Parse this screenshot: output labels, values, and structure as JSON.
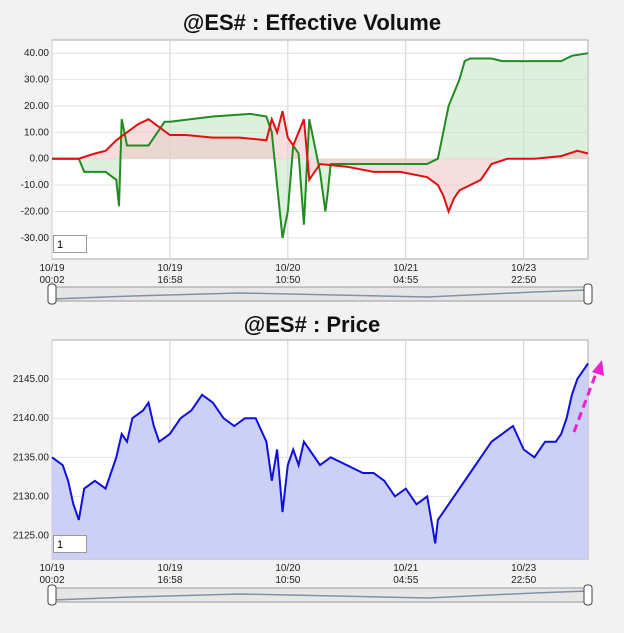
{
  "chart_data": [
    {
      "type": "line",
      "title": "@ES# : Effective Volume",
      "y_ticks": [
        "40.00",
        "30.00",
        "20.00",
        "10.00",
        "0.00",
        "-10.00",
        "-20.00",
        "-30.00"
      ],
      "ylim": [
        -38,
        45
      ],
      "x_ticks": [
        {
          "date": "10/19",
          "time": "00:02"
        },
        {
          "date": "10/19",
          "time": "16:58"
        },
        {
          "date": "10/20",
          "time": "10:50"
        },
        {
          "date": "10/21",
          "time": "04:55"
        },
        {
          "date": "10/23",
          "time": "22:50"
        }
      ],
      "series": [
        {
          "color": "#228b22",
          "fill": "#c8e4c8",
          "x": [
            0,
            0.05,
            0.06,
            0.1,
            0.12,
            0.125,
            0.13,
            0.135,
            0.14,
            0.18,
            0.21,
            0.22,
            0.3,
            0.37,
            0.4,
            0.41,
            0.42,
            0.43,
            0.44,
            0.45,
            0.46,
            0.47,
            0.48,
            0.5,
            0.51,
            0.515,
            0.52,
            0.53,
            0.55,
            0.6,
            0.66,
            0.7,
            0.72,
            0.74,
            0.75,
            0.76,
            0.77,
            0.78,
            0.79,
            0.8,
            0.82,
            0.84,
            0.85,
            0.87,
            0.9,
            0.95,
            0.97,
            1.0
          ],
          "values": [
            0,
            0,
            -5,
            -5,
            -8,
            -18,
            15,
            10,
            5,
            5,
            14,
            14,
            16,
            17,
            16,
            10,
            -10,
            -30,
            -20,
            5,
            2,
            -25,
            15,
            -5,
            -20,
            -12,
            -2,
            -2,
            -2,
            -2,
            -2,
            -2,
            0,
            20,
            25,
            30,
            37,
            38,
            38,
            38,
            38,
            37,
            37,
            37,
            37,
            37,
            39,
            40
          ]
        },
        {
          "color": "#e01010",
          "fill": "#f0c8c8",
          "x": [
            0,
            0.05,
            0.08,
            0.1,
            0.12,
            0.14,
            0.16,
            0.18,
            0.2,
            0.22,
            0.25,
            0.3,
            0.35,
            0.4,
            0.41,
            0.42,
            0.43,
            0.44,
            0.45,
            0.47,
            0.48,
            0.5,
            0.55,
            0.6,
            0.65,
            0.7,
            0.72,
            0.73,
            0.74,
            0.75,
            0.76,
            0.78,
            0.8,
            0.82,
            0.85,
            0.9,
            0.95,
            0.98,
            1.0
          ],
          "values": [
            0,
            0,
            2,
            3,
            7,
            10,
            13,
            15,
            12,
            9,
            9,
            8,
            8,
            7,
            15,
            10,
            18,
            8,
            5,
            15,
            -8,
            -2,
            -3,
            -5,
            -5,
            -7,
            -10,
            -14,
            -20,
            -15,
            -12,
            -10,
            -8,
            -2,
            0,
            0,
            1,
            3,
            2
          ]
        }
      ]
    },
    {
      "type": "area",
      "title": "@ES# : Price",
      "y_ticks": [
        "2145.00",
        "2140.00",
        "2135.00",
        "2130.00",
        "2125.00"
      ],
      "ylim": [
        2122,
        2150
      ],
      "x_ticks": [
        {
          "date": "10/19",
          "time": "00:02"
        },
        {
          "date": "10/19",
          "time": "16:58"
        },
        {
          "date": "10/20",
          "time": "10:50"
        },
        {
          "date": "10/21",
          "time": "04:55"
        },
        {
          "date": "10/23",
          "time": "22:50"
        }
      ],
      "series": [
        {
          "color": "#1010dd",
          "fill": "#ccd0f4",
          "x": [
            0,
            0.02,
            0.03,
            0.04,
            0.05,
            0.06,
            0.08,
            0.1,
            0.12,
            0.13,
            0.14,
            0.15,
            0.17,
            0.18,
            0.19,
            0.2,
            0.22,
            0.24,
            0.26,
            0.28,
            0.3,
            0.32,
            0.34,
            0.36,
            0.38,
            0.4,
            0.41,
            0.42,
            0.43,
            0.44,
            0.45,
            0.46,
            0.47,
            0.48,
            0.5,
            0.52,
            0.55,
            0.58,
            0.6,
            0.62,
            0.64,
            0.66,
            0.68,
            0.7,
            0.71,
            0.715,
            0.72,
            0.73,
            0.75,
            0.78,
            0.8,
            0.82,
            0.84,
            0.86,
            0.88,
            0.9,
            0.92,
            0.94,
            0.95,
            0.96,
            0.97,
            0.98,
            1.0
          ],
          "values": [
            2135,
            2134,
            2132,
            2129,
            2127,
            2131,
            2132,
            2131,
            2135,
            2138,
            2137,
            2140,
            2141,
            2142,
            2139,
            2137,
            2138,
            2140,
            2141,
            2143,
            2142,
            2140,
            2139,
            2140,
            2140,
            2137,
            2132,
            2136,
            2128,
            2134,
            2136,
            2134,
            2137,
            2136,
            2134,
            2135,
            2134,
            2133,
            2133,
            2132,
            2130,
            2131,
            2129,
            2130,
            2126,
            2124,
            2127,
            2128,
            2130,
            2133,
            2135,
            2137,
            2138,
            2139,
            2136,
            2135,
            2137,
            2137,
            2138,
            2140,
            2143,
            2145,
            2147
          ]
        }
      ],
      "annotation": "dashed magenta upward arrow"
    }
  ],
  "input_value": "1"
}
